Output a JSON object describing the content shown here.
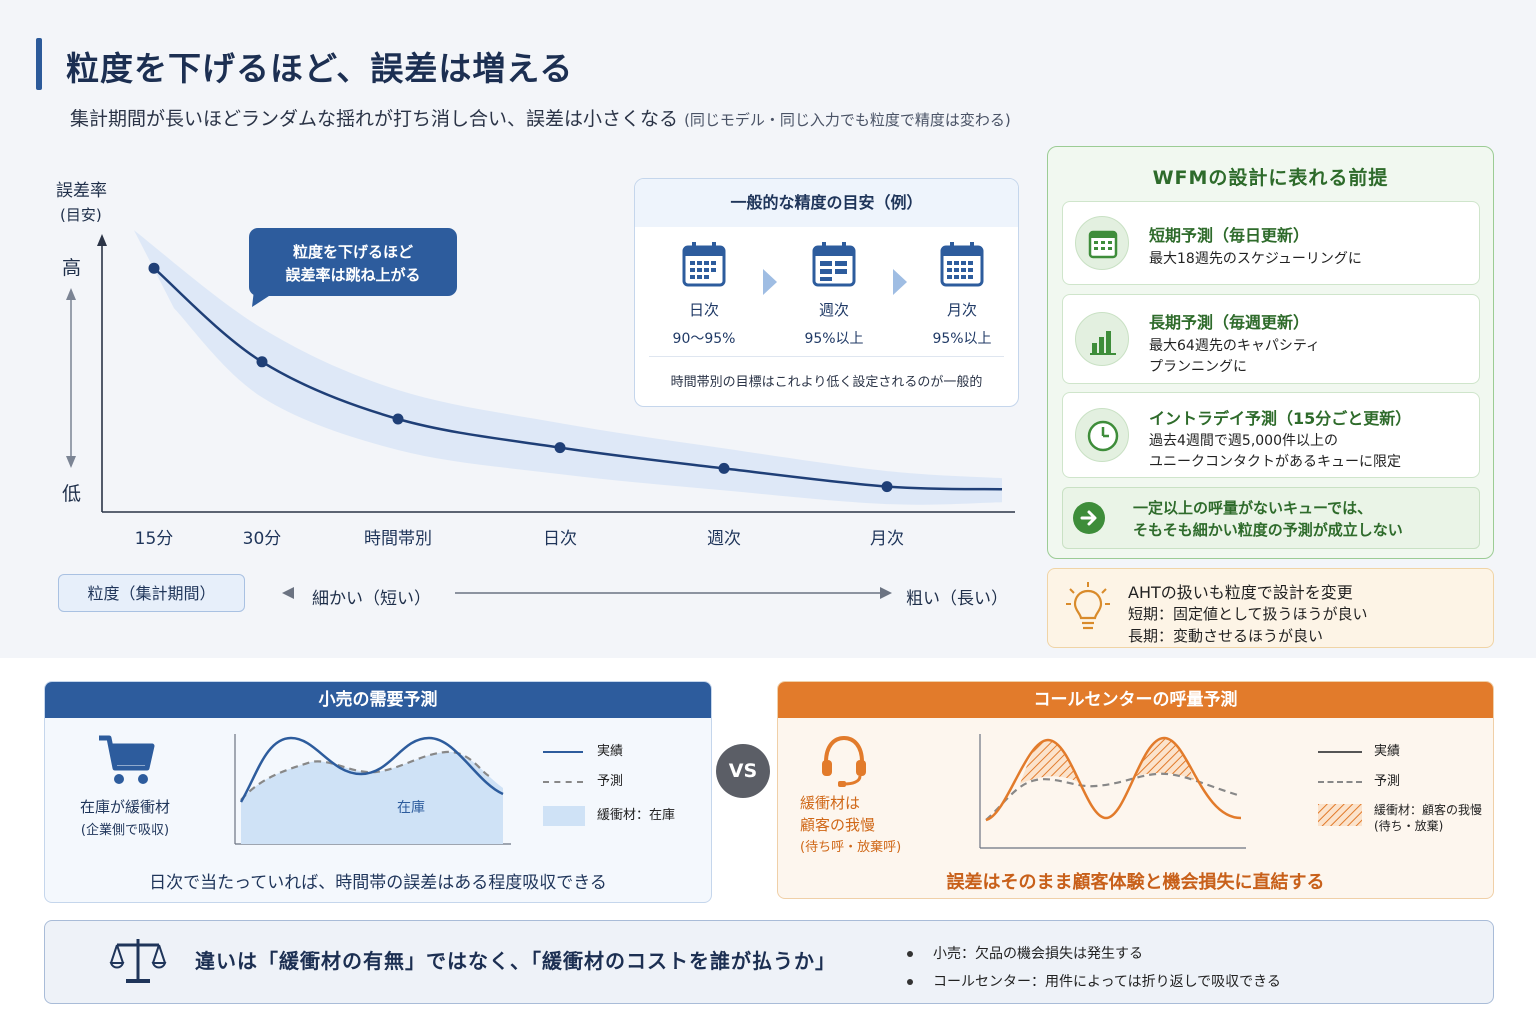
{
  "header": {
    "title": "粒度を下げるほど、誤差は増える",
    "subtitle": "集計期間が長いほどランダムな揺れが打ち消し合い、誤差は小さくなる",
    "subtitle_note": "(同じモデル・同じ入力でも粒度で精度は変わる)"
  },
  "chart_data": {
    "type": "line",
    "ylabel": "誤差率",
    "ylabel_sub": "(目安)",
    "y_high": "高",
    "y_low": "低",
    "categories": [
      "15分",
      "30分",
      "時間帯別",
      "日次",
      "週次",
      "月次"
    ],
    "values": [
      0.93,
      0.57,
      0.35,
      0.24,
      0.16,
      0.09
    ],
    "callout": [
      "粒度を下げるほど",
      "誤差率は跳ね上がる"
    ],
    "band_color": "#dbe7f6",
    "line_color": "#1f3f77"
  },
  "granularity": {
    "label": "粒度（集計期間）",
    "fine": "細かい（短い）",
    "coarse": "粗い（長い）"
  },
  "accuracy": {
    "title": "一般的な精度の目安（例）",
    "items": [
      {
        "name": "日次",
        "value": "90〜95%"
      },
      {
        "name": "週次",
        "value": "95%以上"
      },
      {
        "name": "月次",
        "value": "95%以上"
      }
    ],
    "note": "時間帯別の目標はこれより低く設定されるのが一般的"
  },
  "wfm": {
    "title": "WFMの設計に表れる前提",
    "cards": [
      {
        "title": "短期予測（毎日更新）",
        "desc": [
          "最大18週先のスケジューリングに"
        ],
        "icon": "calendar-icon"
      },
      {
        "title": "長期予測（毎週更新）",
        "desc": [
          "最大64週先のキャパシティ",
          "プランニングに"
        ],
        "icon": "bar-chart-icon"
      },
      {
        "title": "イントラデイ予測（15分ごと更新）",
        "desc": [
          "過去4週間で週5,000件以上の",
          "ユニークコンタクトがあるキューに限定"
        ],
        "icon": "clock-icon"
      }
    ],
    "note": [
      "一定以上の呼量がないキューでは、",
      "そもそも細かい粒度の予測が成立しない"
    ]
  },
  "aht": {
    "title": "AHTの扱いも粒度で設計を変更",
    "short": "短期：固定値として扱うほうが良い",
    "long": "長期：変動させるほうが良い"
  },
  "retail": {
    "title": "小売の需要予測",
    "buffer_label": "在庫が緩衝材",
    "buffer_sub": "(企業側で吸収)",
    "area_label": "在庫",
    "legend": [
      "実績",
      "予測",
      "緩衝材：在庫"
    ],
    "footer": "日次で当たっていれば、時間帯の誤差はある程度吸収できる",
    "color": "#2d5c9d"
  },
  "vs": "VS",
  "callcenter": {
    "title": "コールセンターの呼量予測",
    "buffer_label": [
      "緩衝材は",
      "顧客の我慢"
    ],
    "buffer_sub": "(待ち呼・放棄呼)",
    "legend": [
      "実績",
      "予測",
      "緩衝材：顧客の我慢",
      "(待ち・放棄)"
    ],
    "footer": "誤差はそのまま顧客体験と機会損失に直結する",
    "color": "#e27b2b"
  },
  "summary": {
    "main": "違いは「緩衝材の有無」ではなく、「緩衝材のコストを誰が払うか」",
    "bullets": [
      "小売：欠品の機会損失は発生する",
      "コールセンター：用件によっては折り返しで吸収できる"
    ]
  }
}
